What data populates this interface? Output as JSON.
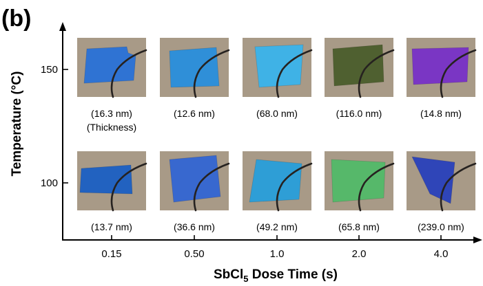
{
  "panel_label": "(b)",
  "chart_data": {
    "type": "table",
    "title": "",
    "xlabel": {
      "main": "SbCl",
      "sub": "5",
      "rest": " Dose Time (s)"
    },
    "ylabel": "Temperature (°C)",
    "x_categories": [
      "0.15",
      "0.50",
      "1.0",
      "2.0",
      "4.0"
    ],
    "y_categories": [
      "150",
      "100"
    ],
    "grid": false,
    "rows": [
      {
        "temperature": "150",
        "cells": [
          {
            "dose": "0.15",
            "thickness_label": "(16.3 nm)",
            "sample_color": "#2f73d3",
            "note": "(Thickness)"
          },
          {
            "dose": "0.50",
            "thickness_label": "(12.6 nm)",
            "sample_color": "#2f8fd8"
          },
          {
            "dose": "1.0",
            "thickness_label": "(68.0 nm)",
            "sample_color": "#3fb2e6"
          },
          {
            "dose": "2.0",
            "thickness_label": "(116.0 nm)",
            "sample_color": "#4f6030"
          },
          {
            "dose": "4.0",
            "thickness_label": "(14.8 nm)",
            "sample_color": "#7a36c4"
          }
        ]
      },
      {
        "temperature": "100",
        "cells": [
          {
            "dose": "0.15",
            "thickness_label": "(13.7 nm)",
            "sample_color": "#2262c0"
          },
          {
            "dose": "0.50",
            "thickness_label": "(36.6 nm)",
            "sample_color": "#3868cf"
          },
          {
            "dose": "1.0",
            "thickness_label": "(49.2 nm)",
            "sample_color": "#2e9ed6"
          },
          {
            "dose": "2.0",
            "thickness_label": "(65.8 nm)",
            "sample_color": "#56b86a"
          },
          {
            "dose": "4.0",
            "thickness_label": "(239.0 nm)",
            "sample_color": "#2f45b8"
          }
        ]
      }
    ]
  },
  "colors": {
    "photo_background": "#a89a87",
    "tweezer": "#262220",
    "axis": "#000000"
  }
}
